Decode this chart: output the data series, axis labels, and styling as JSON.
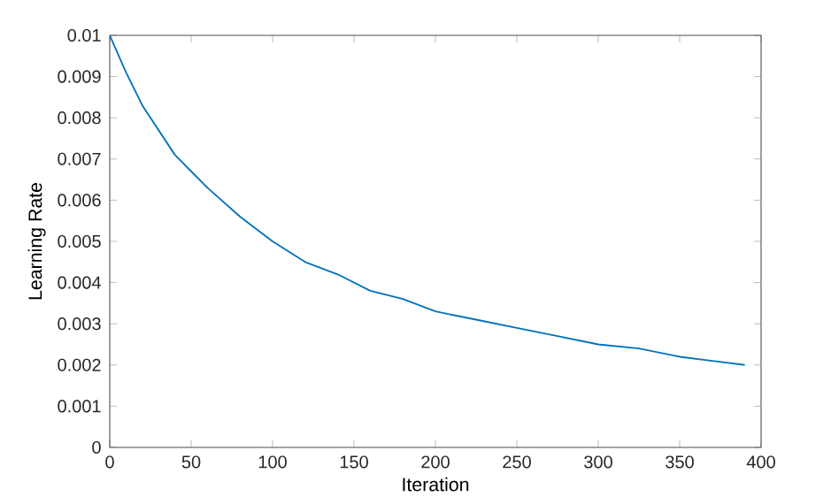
{
  "chart_data": {
    "type": "line",
    "xlabel": "Iteration",
    "ylabel": "Learning Rate",
    "x": [
      0,
      10,
      20,
      30,
      40,
      50,
      60,
      80,
      100,
      120,
      140,
      160,
      180,
      200,
      225,
      250,
      275,
      300,
      325,
      350,
      370,
      390
    ],
    "series": [
      {
        "color": "#0072bd",
        "values": [
          0.01,
          0.0091,
          0.0083,
          0.0077,
          0.0071,
          0.0067,
          0.0063,
          0.0056,
          0.005,
          0.0045,
          0.0042,
          0.0038,
          0.0036,
          0.0033,
          0.0031,
          0.0029,
          0.0027,
          0.0025,
          0.0024,
          0.0022,
          0.0021,
          0.002
        ]
      }
    ],
    "xlim": [
      0,
      400
    ],
    "ylim": [
      0,
      0.01
    ],
    "xticks": [
      0,
      50,
      100,
      150,
      200,
      250,
      300,
      350,
      400
    ],
    "yticks": [
      0,
      0.001,
      0.002,
      0.003,
      0.004,
      0.005,
      0.006,
      0.007,
      0.008,
      0.009,
      0.01
    ],
    "grid": false,
    "marker": "none",
    "line_style": "solid"
  }
}
